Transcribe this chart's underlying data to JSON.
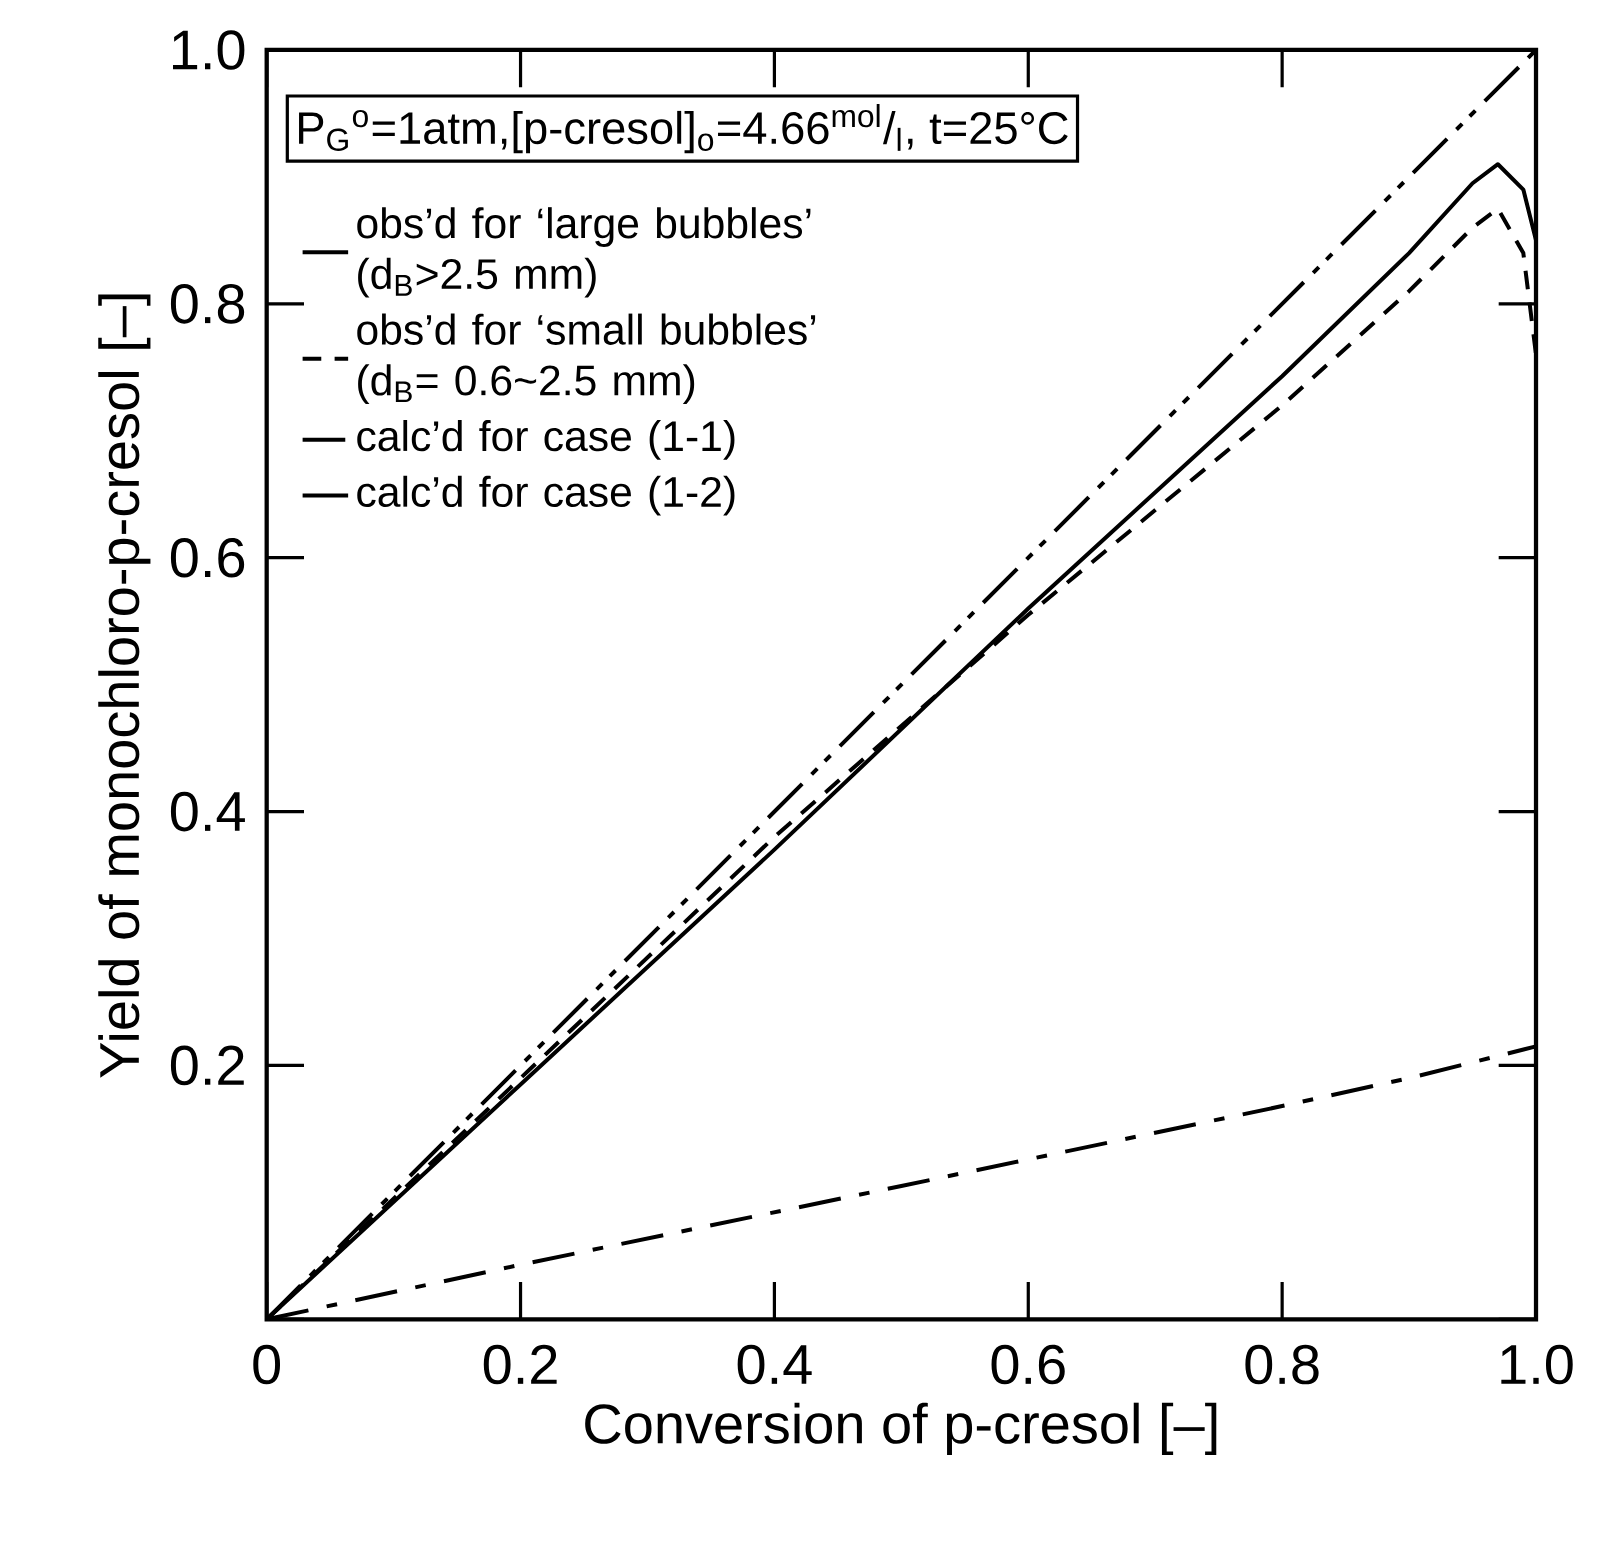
{
  "chart_data": {
    "type": "line",
    "xlabel": "Conversion of p-cresol [–]",
    "ylabel": "Yield of monochloro-p-cresol [–]",
    "annotations": [
      "P$_{G}$$^{o}$=1atm,[p-cresol]$_{o}$=4.66$^{mol}$/$_{l}$, t=25°C"
    ],
    "xlim": [
      0,
      1
    ],
    "ylim": [
      0,
      1
    ],
    "xticks": [
      0,
      0.2,
      0.4,
      0.6,
      0.8,
      {
        "value": 1,
        "label": "1.0"
      }
    ],
    "yticks": [
      {
        "value": 0,
        "label": null
      },
      0.2,
      0.4,
      0.6,
      0.8,
      {
        "value": 1,
        "label": "1.0"
      }
    ],
    "legend": "top left",
    "grid": false,
    "series": [
      {
        "name": "obs’d for ‘large bubbles’ (d$_{B}$>2.5 mm)",
        "color": "#000000",
        "line_style": "solid",
        "x": [
          0,
          0.2,
          0.4,
          0.6,
          0.8,
          0.9,
          0.95,
          0.97,
          0.99,
          1.0
        ],
        "values": [
          0,
          0.185,
          0.37,
          0.56,
          0.743,
          0.84,
          0.895,
          0.91,
          0.89,
          0.85
        ]
      },
      {
        "name": "obs’d for ‘small bubbles’ (d$_{B}$= 0.6~2.5 mm)",
        "color": "#000000",
        "line_style": "dashed",
        "x": [
          0,
          0.2,
          0.4,
          0.6,
          0.8,
          0.9,
          0.95,
          0.97,
          0.99,
          1.0
        ],
        "values": [
          0,
          0.19,
          0.38,
          0.555,
          0.72,
          0.81,
          0.86,
          0.875,
          0.84,
          0.76
        ]
      },
      {
        "name": "calc’d for case (1-1)",
        "color": "#000000",
        "line_style": "dashdot",
        "x": [
          0,
          0.2,
          0.5,
          0.8,
          0.9,
          1.0
        ],
        "values": [
          0,
          0.043,
          0.105,
          0.168,
          0.19,
          0.215
        ]
      },
      {
        "name": "calc’d for case (1-2)",
        "color": "#000000",
        "line_style": "dashdotdot",
        "x": [
          0,
          1.0
        ],
        "values": [
          0,
          1.0
        ]
      }
    ]
  }
}
